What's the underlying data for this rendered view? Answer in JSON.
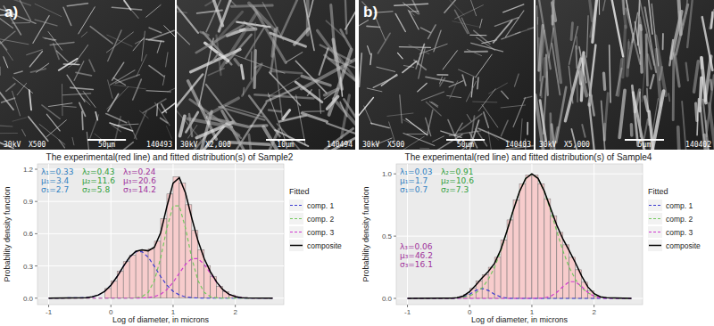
{
  "panels": [
    {
      "label": "a)",
      "images": [
        {
          "voltage": "30kV",
          "magnification": "X500",
          "scale_bar": "50µm",
          "id": "140493"
        },
        {
          "voltage": "30kV",
          "magnification": "X2,000",
          "scale_bar": "10µm",
          "id": "140494"
        }
      ]
    },
    {
      "label": "b)",
      "images": [
        {
          "voltage": "30kV",
          "magnification": "X500",
          "scale_bar": "50µm",
          "id": "140403"
        },
        {
          "voltage": "30kV",
          "magnification": "X5,000",
          "scale_bar": "5µm",
          "id": "140402"
        }
      ]
    }
  ],
  "chart_data": [
    {
      "type": "histogram",
      "title": "The experimental(red line) and fitted distribution(s) of Sample2",
      "x_label": "Log of diameter, in microns",
      "y_label": "Probability density function",
      "color": "#f7cccc",
      "bins": [
        -0.1,
        0,
        0.1,
        0.2,
        0.3,
        0.4,
        0.5,
        0.6,
        0.7,
        0.8,
        0.9,
        1.0,
        1.1,
        1.2,
        1.3,
        1.4,
        1.5,
        1.6,
        1.7,
        1.8,
        1.9,
        2.0,
        2.1
      ],
      "values": [
        0.09,
        0.16,
        0.25,
        0.34,
        0.4,
        0.44,
        0.45,
        0.46,
        0.53,
        0.74,
        0.97,
        1.13,
        1.07,
        0.87,
        0.63,
        0.45,
        0.3,
        0.2,
        0.11,
        0.06,
        0.03,
        0.01
      ],
      "x": [
        -1,
        -0.4,
        -0.3,
        -0.2,
        -0.1,
        0,
        0.1,
        0.2,
        0.3,
        0.4,
        0.5,
        0.6,
        0.7,
        0.8,
        0.9,
        1.0,
        1.1,
        1.2,
        1.3,
        1.4,
        1.5,
        1.6,
        1.7,
        1.8,
        1.9,
        2.0,
        2.1,
        2.2,
        2.6
      ],
      "series": [
        {
          "name": "comp. 1",
          "type": "line",
          "color": "#3b3bd1",
          "line_style": "dashed",
          "values": [
            0,
            0.005,
            0.012,
            0.03,
            0.064,
            0.121,
            0.201,
            0.296,
            0.381,
            0.433,
            0.433,
            0.381,
            0.296,
            0.201,
            0.121,
            0.064,
            0.03,
            0.012,
            0.005,
            0.002,
            0,
            0,
            0,
            0,
            0,
            0,
            0,
            0,
            0
          ]
        },
        {
          "name": "comp. 2",
          "type": "line",
          "color": "#74c95f",
          "line_style": "dashed",
          "values": [
            0,
            0,
            0,
            0,
            0,
            0,
            0,
            0,
            0,
            0.003,
            0.014,
            0.054,
            0.164,
            0.373,
            0.651,
            0.86,
            0.86,
            0.651,
            0.373,
            0.164,
            0.054,
            0.014,
            0.003,
            0,
            0,
            0,
            0,
            0,
            0
          ]
        },
        {
          "name": "comp. 3",
          "type": "line",
          "color": "#d03ad0",
          "line_style": "dashed",
          "values": [
            0,
            0,
            0,
            0,
            0,
            0,
            0,
            0,
            0,
            0,
            0.002,
            0.005,
            0.015,
            0.036,
            0.08,
            0.147,
            0.232,
            0.315,
            0.368,
            0.368,
            0.315,
            0.232,
            0.147,
            0.08,
            0.036,
            0.015,
            0.005,
            0.002,
            0
          ]
        },
        {
          "name": "composite",
          "type": "line",
          "color": "#000000",
          "line_style": "solid",
          "values": [
            0,
            0.005,
            0.012,
            0.03,
            0.064,
            0.121,
            0.201,
            0.296,
            0.381,
            0.436,
            0.449,
            0.44,
            0.475,
            0.61,
            0.852,
            1.071,
            1.122,
            0.978,
            0.746,
            0.534,
            0.369,
            0.246,
            0.15,
            0.08,
            0.036,
            0.015,
            0.005,
            0.002,
            0
          ]
        }
      ],
      "annotations": [
        {
          "color": "#2f7fc1",
          "lines": [
            "λ₁=0.33",
            "μ₁=3.4",
            "σ₁=2.7"
          ]
        },
        {
          "color": "#2f9e3a",
          "lines": [
            "λ₂=0.43",
            "μ₂=11.6",
            "σ₂=5.8"
          ]
        },
        {
          "color": "#a0309a",
          "lines": [
            "λ₃=0.24",
            "μ₃=20.6",
            "σ₃=14.2"
          ]
        }
      ],
      "legend_title": "Fitted",
      "legend": "right",
      "grid": true,
      "xlim": [
        -1.18,
        2.78
      ],
      "xticks": [
        -1,
        0,
        1,
        2
      ],
      "ylim": [
        -0.06,
        1.25
      ],
      "yticks": [
        {
          "value": 0,
          "label": "0.0"
        },
        {
          "value": 0.3,
          "label": "0.3"
        },
        {
          "value": 0.6,
          "label": "0.6"
        },
        {
          "value": 0.9,
          "label": "0.9"
        },
        {
          "value": 1.2,
          "label": "1.2"
        }
      ]
    },
    {
      "type": "histogram",
      "title": "The experimental(red line) and fitted distribution(s) of Sample4",
      "x_label": "Log of diameter, in microns",
      "y_label": "Probability density function",
      "color": "#f7cccc",
      "bins": [
        -0.2,
        -0.1,
        0,
        0.1,
        0.2,
        0.3,
        0.4,
        0.5,
        0.6,
        0.7,
        0.8,
        0.9,
        1.0,
        1.1,
        1.2,
        1.3,
        1.4,
        1.5,
        1.6,
        1.7,
        1.8,
        1.9,
        2.0,
        2.1
      ],
      "values": [
        0.01,
        0.03,
        0.08,
        0.14,
        0.19,
        0.25,
        0.33,
        0.47,
        0.63,
        0.79,
        0.92,
        0.99,
        0.99,
        0.92,
        0.8,
        0.66,
        0.53,
        0.43,
        0.33,
        0.23,
        0.13,
        0.06,
        0.02
      ],
      "x": [
        -1,
        -0.4,
        -0.3,
        -0.2,
        -0.1,
        0,
        0.1,
        0.2,
        0.3,
        0.4,
        0.5,
        0.6,
        0.7,
        0.8,
        0.9,
        1.0,
        1.1,
        1.2,
        1.3,
        1.4,
        1.5,
        1.6,
        1.7,
        1.8,
        1.9,
        2.0,
        2.1,
        2.2,
        2.6
      ],
      "series": [
        {
          "name": "comp. 1",
          "type": "line",
          "color": "#3b3bd1",
          "line_style": "dashed",
          "values": [
            0,
            0,
            0,
            0.002,
            0.011,
            0.033,
            0.064,
            0.08,
            0.064,
            0.033,
            0.011,
            0.002,
            0,
            0,
            0,
            0,
            0,
            0,
            0,
            0,
            0,
            0,
            0,
            0,
            0,
            0,
            0,
            0,
            0
          ]
        },
        {
          "name": "comp. 2",
          "type": "line",
          "color": "#74c95f",
          "line_style": "dashed",
          "values": [
            0,
            0.001,
            0.001,
            0.004,
            0.009,
            0.021,
            0.044,
            0.085,
            0.152,
            0.249,
            0.381,
            0.54,
            0.707,
            0.857,
            0.962,
            1.0,
            0.962,
            0.857,
            0.707,
            0.54,
            0.381,
            0.249,
            0.152,
            0.085,
            0.044,
            0.021,
            0.009,
            0.004,
            0
          ]
        },
        {
          "name": "comp. 3",
          "type": "line",
          "color": "#d03ad0",
          "line_style": "dashed",
          "values": [
            0,
            0,
            0,
            0,
            0,
            0,
            0,
            0,
            0,
            0,
            0,
            0,
            0,
            0,
            0,
            0,
            0.001,
            0.004,
            0.017,
            0.048,
            0.095,
            0.134,
            0.134,
            0.095,
            0.048,
            0.017,
            0.004,
            0.001,
            0
          ]
        },
        {
          "name": "composite",
          "type": "line",
          "color": "#000000",
          "line_style": "solid",
          "values": [
            0,
            0.001,
            0.001,
            0.006,
            0.02,
            0.054,
            0.108,
            0.165,
            0.216,
            0.282,
            0.392,
            0.542,
            0.707,
            0.857,
            0.962,
            1.0,
            0.963,
            0.861,
            0.724,
            0.588,
            0.476,
            0.383,
            0.286,
            0.18,
            0.092,
            0.038,
            0.013,
            0.005,
            0
          ]
        }
      ],
      "annotations": [
        {
          "color": "#2f7fc1",
          "lines": [
            "λ₁=0.03",
            "μ₁=1.7",
            "σ₁=0.7"
          ]
        },
        {
          "color": "#2f9e3a",
          "lines": [
            "λ₂=0.91",
            "μ₂=10.6",
            "σ₂=7.3"
          ]
        },
        {
          "color": "#a0309a",
          "lines": [
            "λ₃=0.06",
            "μ₃=46.2",
            "σ₃=16.1"
          ]
        }
      ],
      "legend_title": "Fitted",
      "legend": "right",
      "grid": true,
      "xlim": [
        -1.18,
        2.78
      ],
      "xticks": [
        -1,
        0,
        1,
        2
      ],
      "ylim": [
        -0.05,
        1.08
      ],
      "yticks": [
        {
          "value": 0,
          "label": "0.0"
        },
        {
          "value": 0.5,
          "label": "0.5"
        },
        {
          "value": 1,
          "label": "1.0"
        }
      ]
    }
  ]
}
